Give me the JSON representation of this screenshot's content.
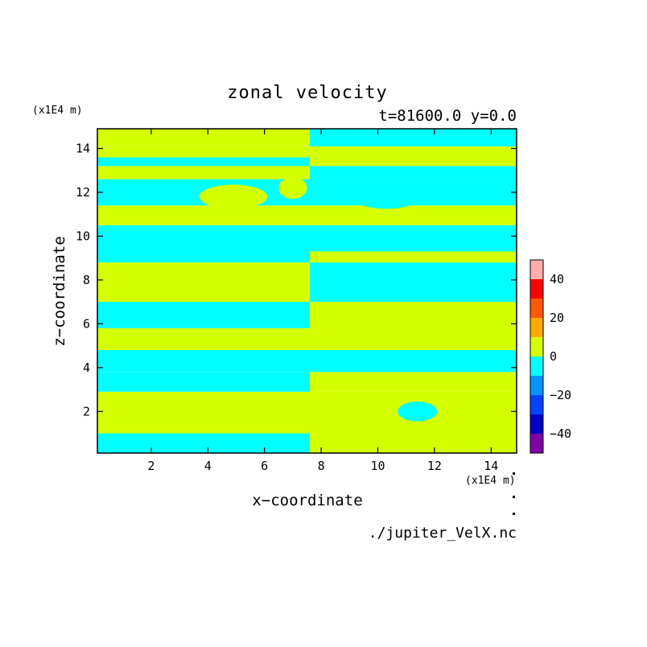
{
  "chart_data": {
    "type": "heatmap",
    "title": "zonal velocity",
    "subtitle": "t=81600.0 y=0.0",
    "xlabel": "x−coordinate",
    "ylabel": "z−coordinate",
    "x_unit": "(x1E4 m)",
    "y_unit": "(x1E4 m)",
    "source_file": "./jupiter_VelX.nc",
    "xlim": [
      0.1,
      14.9
    ],
    "ylim": [
      0.1,
      14.9
    ],
    "x_ticks": [
      2,
      4,
      6,
      8,
      10,
      12,
      14
    ],
    "y_ticks": [
      2,
      4,
      6,
      8,
      10,
      12,
      14
    ],
    "x_tick_labels": [
      "2",
      "4",
      "6",
      "8",
      "10",
      "12",
      "14"
    ],
    "y_tick_labels": [
      "2",
      "4",
      "6",
      "8",
      "10",
      "12",
      "14"
    ],
    "colorbar": {
      "levels": [
        -50,
        -40,
        -30,
        -20,
        -10,
        0,
        10,
        20,
        30,
        40,
        50
      ],
      "colors": [
        "#7f00a8",
        "#0000c8",
        "#0044ff",
        "#0095ff",
        "#00ffff",
        "#d4ff00",
        "#ffaa00",
        "#ff5a00",
        "#ff0000",
        "#ffadad"
      ],
      "tick_values": [
        -40,
        -20,
        0,
        20,
        40
      ],
      "tick_labels": [
        "−40",
        "−20",
        "0",
        "20",
        "40"
      ]
    },
    "field_summary": {
      "bins": [
        "-10 to 0",
        "0 to 10"
      ],
      "note": "Horizontally banded field of alternating slightly negative and slightly positive zonal velocity with sign reversal across x≈7.6"
    },
    "bands": [
      {
        "z_bottom": 0.1,
        "z_top": 1.0,
        "left": "-10 to 0",
        "right": "0 to 10"
      },
      {
        "z_bottom": 1.0,
        "z_top": 2.9,
        "left": "0 to 10",
        "right": "0 to 10"
      },
      {
        "z_bottom": 2.9,
        "z_top": 3.8,
        "left": "-10 to 0",
        "right": "0 to 10"
      },
      {
        "z_bottom": 3.8,
        "z_top": 4.8,
        "left": "-10 to 0",
        "right": "-10 to 0"
      },
      {
        "z_bottom": 4.8,
        "z_top": 5.8,
        "left": "0 to 10",
        "right": "0 to 10"
      },
      {
        "z_bottom": 5.8,
        "z_top": 7.0,
        "left": "-10 to 0",
        "right": "0 to 10"
      },
      {
        "z_bottom": 7.0,
        "z_top": 8.8,
        "left": "0 to 10",
        "right": "-10 to 0"
      },
      {
        "z_bottom": 8.8,
        "z_top": 9.3,
        "left": "-10 to 0",
        "right": "0 to 10"
      },
      {
        "z_bottom": 9.3,
        "z_top": 10.5,
        "left": "-10 to 0",
        "right": "-10 to 0"
      },
      {
        "z_bottom": 10.5,
        "z_top": 11.4,
        "left": "0 to 10",
        "right": "0 to 10"
      },
      {
        "z_bottom": 11.4,
        "z_top": 12.6,
        "left": "-10 to 0",
        "right": "-10 to 0"
      },
      {
        "z_bottom": 12.6,
        "z_top": 13.2,
        "left": "0 to 10",
        "right": "-10 to 0"
      },
      {
        "z_bottom": 13.2,
        "z_top": 13.6,
        "left": "-10 to 0",
        "right": "0 to 10"
      },
      {
        "z_bottom": 13.6,
        "z_top": 14.1,
        "left": "0 to 10",
        "right": "0 to 10"
      },
      {
        "z_bottom": 14.1,
        "z_top": 14.9,
        "left": "0 to 10",
        "right": "-10 to 0"
      }
    ],
    "blobs": [
      {
        "x": 3.9,
        "z": 2.0,
        "rx": 0.7,
        "rz": 0.45,
        "bin": "0 to 10"
      },
      {
        "x": 11.4,
        "z": 2.0,
        "rx": 0.7,
        "rz": 0.45,
        "bin": "-10 to 0"
      },
      {
        "x": 6.8,
        "z": 6.7,
        "rx": 0.7,
        "rz": 0.25,
        "bin": "-10 to 0"
      },
      {
        "x": 4.9,
        "z": 11.8,
        "rx": 1.2,
        "rz": 0.55,
        "bin": "0 to 10"
      },
      {
        "x": 10.3,
        "z": 11.8,
        "rx": 1.2,
        "rz": 0.55,
        "bin": "-10 to 0"
      },
      {
        "x": 7.0,
        "z": 12.2,
        "rx": 0.5,
        "rz": 0.5,
        "bin": "0 to 10"
      }
    ],
    "grid": false
  }
}
